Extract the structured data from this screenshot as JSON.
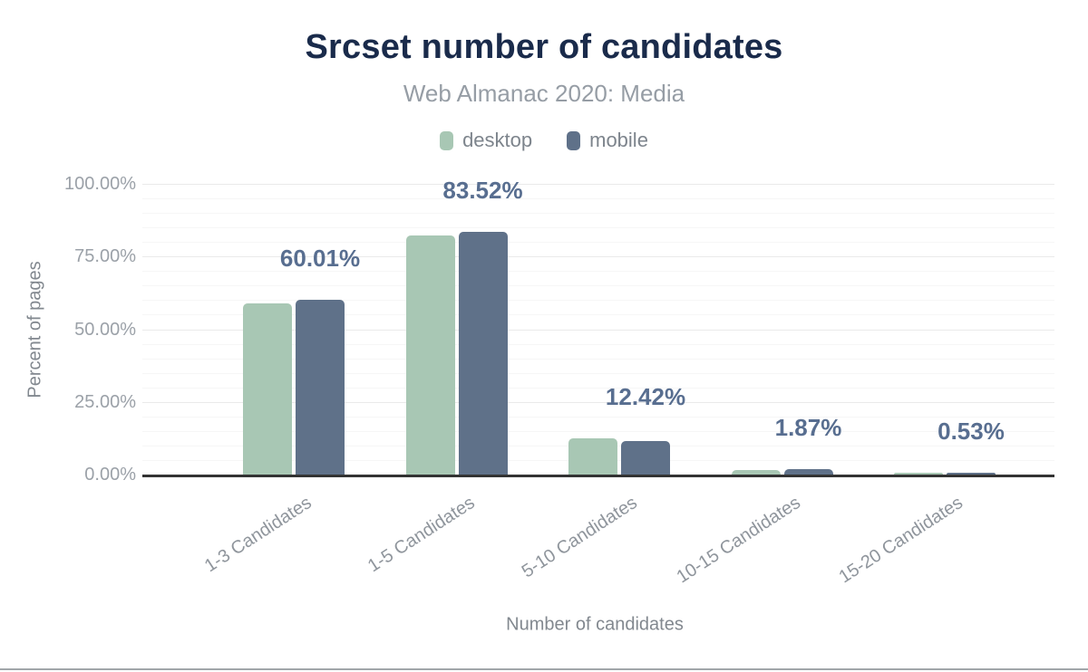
{
  "chart_data": {
    "type": "bar",
    "title": "Srcset number of candidates",
    "subtitle": "Web Almanac 2020: Media",
    "xlabel": "Number of candidates",
    "ylabel": "Percent of pages",
    "categories": [
      "1-3 Candidates",
      "1-5 Candidates",
      "5-10 Candidates",
      "10-15 Candidates",
      "15-20 Candidates"
    ],
    "series": [
      {
        "name": "desktop",
        "color": "#a8c7b4",
        "values": [
          58.9,
          82.3,
          12.42,
          1.6,
          0.5
        ]
      },
      {
        "name": "mobile",
        "color": "#5f7189",
        "values": [
          60.01,
          83.52,
          11.6,
          1.87,
          0.53
        ]
      }
    ],
    "annotations": [
      "60.01%",
      "83.52%",
      "12.42%",
      "1.87%",
      "0.53%"
    ],
    "y_ticks": [
      "0.00%",
      "25.00%",
      "50.00%",
      "75.00%",
      "100.00%"
    ],
    "ylim": [
      0,
      100
    ],
    "grid": true,
    "legend_position": "top-center",
    "colors": {
      "title": "#1a2b4b",
      "annotation": "#586e90",
      "axis_text": "#9ba1a8",
      "baseline": "#333333"
    }
  }
}
